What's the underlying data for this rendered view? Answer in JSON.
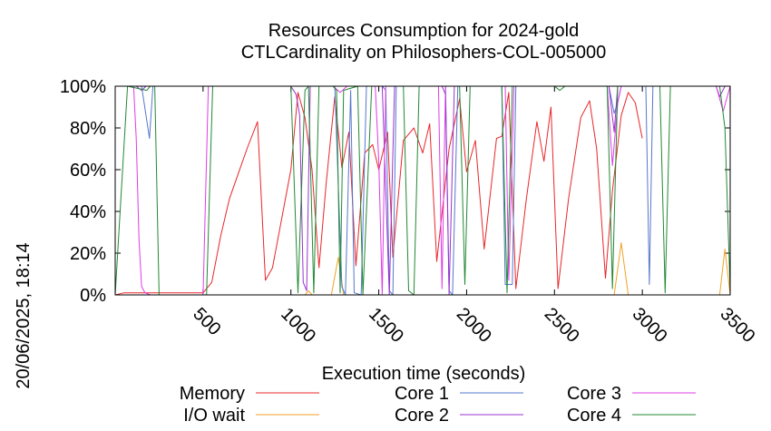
{
  "timestamp": "20/06/2025, 18:14",
  "chart_data": {
    "type": "line",
    "title": "Resources Consumption for 2024-gold",
    "subtitle": "CTLCardinality on Philosophers-COL-005000",
    "xlabel": "Execution time (seconds)",
    "ylabel": "",
    "xlim": [
      0,
      3500
    ],
    "ylim": [
      0,
      100
    ],
    "x_ticks": [
      500,
      1000,
      1500,
      2000,
      2500,
      3000,
      3500
    ],
    "y_ticks": [
      0,
      20,
      40,
      60,
      80,
      100
    ],
    "y_tick_labels": [
      "0%",
      "20%",
      "40%",
      "60%",
      "80%",
      "100%"
    ],
    "legend_position": "bottom",
    "series": [
      {
        "name": "Memory",
        "color": "#e8262b",
        "points": [
          [
            0,
            0
          ],
          [
            50,
            1
          ],
          [
            100,
            1
          ],
          [
            150,
            1
          ],
          [
            200,
            1
          ],
          [
            250,
            1
          ],
          [
            300,
            1
          ],
          [
            350,
            1
          ],
          [
            400,
            1
          ],
          [
            450,
            1
          ],
          [
            500,
            1
          ],
          [
            550,
            6
          ],
          [
            600,
            28
          ],
          [
            650,
            46
          ],
          [
            700,
            58
          ],
          [
            750,
            70
          ],
          [
            810,
            83
          ],
          [
            855,
            7
          ],
          [
            895,
            13
          ],
          [
            1000,
            60
          ],
          [
            1040,
            97
          ],
          [
            1080,
            85
          ],
          [
            1120,
            60
          ],
          [
            1160,
            13
          ],
          [
            1200,
            53
          ],
          [
            1250,
            95
          ],
          [
            1290,
            61
          ],
          [
            1330,
            78
          ],
          [
            1370,
            14
          ],
          [
            1420,
            68
          ],
          [
            1465,
            72
          ],
          [
            1500,
            60
          ],
          [
            1550,
            78
          ],
          [
            1580,
            18
          ],
          [
            1640,
            74
          ],
          [
            1700,
            80
          ],
          [
            1750,
            68
          ],
          [
            1790,
            82
          ],
          [
            1830,
            16
          ],
          [
            1900,
            70
          ],
          [
            1960,
            94
          ],
          [
            2000,
            59
          ],
          [
            2050,
            74
          ],
          [
            2100,
            22
          ],
          [
            2170,
            75
          ],
          [
            2200,
            76
          ],
          [
            2240,
            97
          ],
          [
            2280,
            3
          ],
          [
            2340,
            46
          ],
          [
            2400,
            83
          ],
          [
            2440,
            64
          ],
          [
            2480,
            90
          ],
          [
            2520,
            3
          ],
          [
            2580,
            46
          ],
          [
            2650,
            85
          ],
          [
            2700,
            93
          ],
          [
            2740,
            70
          ],
          [
            2790,
            8
          ],
          [
            2830,
            50
          ],
          [
            2880,
            86
          ],
          [
            2920,
            97
          ],
          [
            2960,
            92
          ],
          [
            3000,
            75
          ]
        ]
      },
      {
        "name": "I/O wait",
        "color": "#f0a22a",
        "points": [
          [
            0,
            0
          ],
          [
            1080,
            0
          ],
          [
            1100,
            2
          ],
          [
            1120,
            0
          ],
          [
            1230,
            0
          ],
          [
            1270,
            18
          ],
          [
            1300,
            0
          ],
          [
            2840,
            0
          ],
          [
            2880,
            25
          ],
          [
            2920,
            0
          ],
          [
            3440,
            0
          ],
          [
            3470,
            22
          ],
          [
            3500,
            0
          ]
        ]
      },
      {
        "name": "Core 1",
        "color": "#5577cc",
        "points": [
          [
            0,
            100
          ],
          [
            150,
            100
          ],
          [
            195,
            75
          ],
          [
            215,
            100
          ],
          [
            1250,
            100
          ],
          [
            1290,
            4
          ],
          [
            1310,
            0
          ],
          [
            1340,
            98
          ],
          [
            1360,
            1
          ],
          [
            1400,
            0
          ],
          [
            1430,
            100
          ],
          [
            1520,
            100
          ],
          [
            1540,
            98
          ],
          [
            1560,
            2
          ],
          [
            1580,
            0
          ],
          [
            1600,
            100
          ],
          [
            1880,
            100
          ],
          [
            1900,
            2
          ],
          [
            1920,
            0
          ],
          [
            1950,
            100
          ],
          [
            2200,
            100
          ],
          [
            2220,
            5
          ],
          [
            2260,
            5
          ],
          [
            2280,
            100
          ],
          [
            2810,
            100
          ],
          [
            2840,
            87
          ],
          [
            2860,
            92
          ],
          [
            2880,
            100
          ],
          [
            3020,
            100
          ],
          [
            3040,
            5
          ],
          [
            3060,
            100
          ],
          [
            3500,
            100
          ]
        ]
      },
      {
        "name": "Core 2",
        "color": "#9933cc",
        "points": [
          [
            0,
            100
          ],
          [
            120,
            100
          ],
          [
            150,
            98
          ],
          [
            175,
            100
          ],
          [
            1000,
            100
          ],
          [
            1030,
            96
          ],
          [
            1050,
            86
          ],
          [
            1070,
            6
          ],
          [
            1090,
            2
          ],
          [
            1110,
            100
          ],
          [
            1520,
            100
          ],
          [
            1560,
            0
          ],
          [
            1590,
            100
          ],
          [
            1860,
            100
          ],
          [
            1880,
            96
          ],
          [
            1900,
            0
          ],
          [
            1930,
            100
          ],
          [
            2810,
            100
          ],
          [
            2840,
            78
          ],
          [
            2860,
            100
          ],
          [
            3420,
            100
          ],
          [
            3440,
            95
          ],
          [
            3470,
            100
          ],
          [
            3500,
            100
          ]
        ]
      },
      {
        "name": "Core 3",
        "color": "#e03be8",
        "points": [
          [
            0,
            100
          ],
          [
            105,
            100
          ],
          [
            120,
            75
          ],
          [
            135,
            27
          ],
          [
            150,
            4
          ],
          [
            170,
            1
          ],
          [
            200,
            0
          ],
          [
            400,
            0
          ],
          [
            430,
            0
          ],
          [
            500,
            0
          ],
          [
            530,
            100
          ],
          [
            1240,
            100
          ],
          [
            1280,
            97
          ],
          [
            1320,
            100
          ],
          [
            1480,
            100
          ],
          [
            1500,
            64
          ],
          [
            1520,
            0
          ],
          [
            1540,
            100
          ],
          [
            1840,
            100
          ],
          [
            1860,
            3
          ],
          [
            1880,
            100
          ],
          [
            2220,
            100
          ],
          [
            2240,
            7
          ],
          [
            2270,
            100
          ],
          [
            2800,
            100
          ],
          [
            2830,
            62
          ],
          [
            2860,
            92
          ],
          [
            2880,
            100
          ],
          [
            3420,
            100
          ],
          [
            3460,
            88
          ],
          [
            3500,
            100
          ]
        ]
      },
      {
        "name": "Core 4",
        "color": "#228833",
        "points": [
          [
            0,
            0
          ],
          [
            70,
            100
          ],
          [
            180,
            98
          ],
          [
            200,
            100
          ],
          [
            225,
            100
          ],
          [
            250,
            0
          ],
          [
            520,
            0
          ],
          [
            555,
            100
          ],
          [
            1000,
            100
          ],
          [
            1040,
            1
          ],
          [
            1080,
            98
          ],
          [
            1100,
            100
          ],
          [
            1130,
            1
          ],
          [
            1160,
            100
          ],
          [
            1240,
            100
          ],
          [
            1260,
            98
          ],
          [
            1280,
            1
          ],
          [
            1300,
            98
          ],
          [
            1380,
            100
          ],
          [
            1410,
            0
          ],
          [
            1460,
            100
          ],
          [
            1640,
            100
          ],
          [
            1670,
            2
          ],
          [
            1700,
            0
          ],
          [
            1730,
            100
          ],
          [
            1960,
            100
          ],
          [
            1990,
            5
          ],
          [
            2020,
            100
          ],
          [
            2200,
            100
          ],
          [
            2230,
            1
          ],
          [
            2260,
            100
          ],
          [
            2500,
            100
          ],
          [
            2530,
            98
          ],
          [
            2560,
            100
          ],
          [
            2800,
            100
          ],
          [
            2830,
            3
          ],
          [
            2860,
            100
          ],
          [
            3100,
            100
          ],
          [
            3130,
            1
          ],
          [
            3160,
            100
          ],
          [
            3440,
            100
          ],
          [
            3470,
            80
          ],
          [
            3500,
            2
          ]
        ]
      }
    ]
  }
}
